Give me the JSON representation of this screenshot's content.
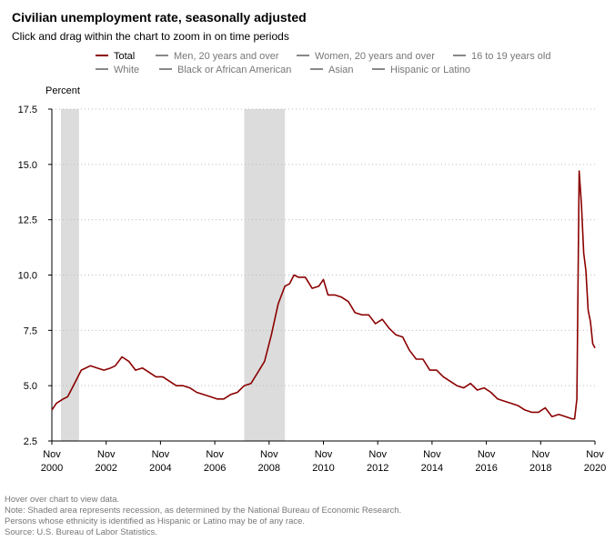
{
  "header": {
    "title": "Civilian unemployment rate, seasonally adjusted",
    "subtitle": "Click and drag within the chart to zoom in on time periods"
  },
  "legend": {
    "row1": [
      {
        "label": "Total",
        "active": true
      },
      {
        "label": "Men, 20 years and over",
        "active": false
      },
      {
        "label": "Women, 20 years and over",
        "active": false
      },
      {
        "label": "16 to 19 years old",
        "active": false
      }
    ],
    "row2": [
      {
        "label": "White",
        "active": false
      },
      {
        "label": "Black or African American",
        "active": false
      },
      {
        "label": "Asian",
        "active": false
      },
      {
        "label": "Hispanic or Latino",
        "active": false
      }
    ]
  },
  "notes": {
    "hover": "Hover over chart to view data.",
    "note": "Note: Shaded area represents recession, as determined by the National Bureau of Economic Research.",
    "ethnicity": "Persons whose ethnicity is identified as Hispanic or Latino may be of any race.",
    "source": "Source: U.S. Bureau of Labor Statistics."
  },
  "colors": {
    "series": "#8b0000",
    "recession": "#dcdcdc",
    "grid": "#bbbbbb",
    "axis": "#000000"
  },
  "chart_data": {
    "type": "line",
    "title": "Civilian unemployment rate, seasonally adjusted",
    "ylabel": "Percent",
    "xlabel": "",
    "ylim": [
      2.5,
      17.5
    ],
    "yticks": [
      "17.5",
      "15.0",
      "12.5",
      "10.0",
      "7.5",
      "5.0",
      "2.5"
    ],
    "xlim": [
      "2000-11",
      "2020-11"
    ],
    "xticks": [
      {
        "month": "Nov",
        "year": "2000"
      },
      {
        "month": "Nov",
        "year": "2002"
      },
      {
        "month": "Nov",
        "year": "2004"
      },
      {
        "month": "Nov",
        "year": "2006"
      },
      {
        "month": "Nov",
        "year": "2008"
      },
      {
        "month": "Nov",
        "year": "2010"
      },
      {
        "month": "Nov",
        "year": "2012"
      },
      {
        "month": "Nov",
        "year": "2014"
      },
      {
        "month": "Nov",
        "year": "2016"
      },
      {
        "month": "Nov",
        "year": "2018"
      },
      {
        "month": "Nov",
        "year": "2020"
      }
    ],
    "grid": true,
    "legend_position": "top",
    "recessions": [
      {
        "start": "2001-03",
        "end": "2001-11"
      },
      {
        "start": "2007-12",
        "end": "2009-06"
      }
    ],
    "series": [
      {
        "name": "Total",
        "points": [
          [
            "2000-11",
            3.9
          ],
          [
            "2001-01",
            4.2
          ],
          [
            "2001-04",
            4.4
          ],
          [
            "2001-06",
            4.5
          ],
          [
            "2001-08",
            4.9
          ],
          [
            "2001-10",
            5.3
          ],
          [
            "2001-12",
            5.7
          ],
          [
            "2002-04",
            5.9
          ],
          [
            "2002-07",
            5.8
          ],
          [
            "2002-10",
            5.7
          ],
          [
            "2003-01",
            5.8
          ],
          [
            "2003-03",
            5.9
          ],
          [
            "2003-06",
            6.3
          ],
          [
            "2003-09",
            6.1
          ],
          [
            "2003-12",
            5.7
          ],
          [
            "2004-03",
            5.8
          ],
          [
            "2004-06",
            5.6
          ],
          [
            "2004-09",
            5.4
          ],
          [
            "2004-12",
            5.4
          ],
          [
            "2005-03",
            5.2
          ],
          [
            "2005-06",
            5.0
          ],
          [
            "2005-09",
            5.0
          ],
          [
            "2005-12",
            4.9
          ],
          [
            "2006-03",
            4.7
          ],
          [
            "2006-06",
            4.6
          ],
          [
            "2006-09",
            4.5
          ],
          [
            "2006-12",
            4.4
          ],
          [
            "2007-03",
            4.4
          ],
          [
            "2007-06",
            4.6
          ],
          [
            "2007-09",
            4.7
          ],
          [
            "2007-12",
            5.0
          ],
          [
            "2008-03",
            5.1
          ],
          [
            "2008-06",
            5.6
          ],
          [
            "2008-09",
            6.1
          ],
          [
            "2008-12",
            7.3
          ],
          [
            "2009-03",
            8.7
          ],
          [
            "2009-06",
            9.5
          ],
          [
            "2009-08",
            9.6
          ],
          [
            "2009-10",
            10.0
          ],
          [
            "2009-12",
            9.9
          ],
          [
            "2010-03",
            9.9
          ],
          [
            "2010-06",
            9.4
          ],
          [
            "2010-09",
            9.5
          ],
          [
            "2010-11",
            9.8
          ],
          [
            "2011-01",
            9.1
          ],
          [
            "2011-04",
            9.1
          ],
          [
            "2011-07",
            9.0
          ],
          [
            "2011-10",
            8.8
          ],
          [
            "2012-01",
            8.3
          ],
          [
            "2012-04",
            8.2
          ],
          [
            "2012-07",
            8.2
          ],
          [
            "2012-10",
            7.8
          ],
          [
            "2013-01",
            8.0
          ],
          [
            "2013-04",
            7.6
          ],
          [
            "2013-07",
            7.3
          ],
          [
            "2013-10",
            7.2
          ],
          [
            "2014-01",
            6.6
          ],
          [
            "2014-04",
            6.2
          ],
          [
            "2014-07",
            6.2
          ],
          [
            "2014-10",
            5.7
          ],
          [
            "2015-01",
            5.7
          ],
          [
            "2015-04",
            5.4
          ],
          [
            "2015-07",
            5.2
          ],
          [
            "2015-10",
            5.0
          ],
          [
            "2016-01",
            4.9
          ],
          [
            "2016-04",
            5.1
          ],
          [
            "2016-07",
            4.8
          ],
          [
            "2016-10",
            4.9
          ],
          [
            "2017-01",
            4.7
          ],
          [
            "2017-04",
            4.4
          ],
          [
            "2017-07",
            4.3
          ],
          [
            "2017-10",
            4.2
          ],
          [
            "2018-01",
            4.1
          ],
          [
            "2018-04",
            3.9
          ],
          [
            "2018-07",
            3.8
          ],
          [
            "2018-10",
            3.8
          ],
          [
            "2019-01",
            4.0
          ],
          [
            "2019-04",
            3.6
          ],
          [
            "2019-07",
            3.7
          ],
          [
            "2019-10",
            3.6
          ],
          [
            "2020-01",
            3.5
          ],
          [
            "2020-02",
            3.5
          ],
          [
            "2020-03",
            4.4
          ],
          [
            "2020-04",
            14.7
          ],
          [
            "2020-05",
            13.2
          ],
          [
            "2020-06",
            11.0
          ],
          [
            "2020-07",
            10.2
          ],
          [
            "2020-08",
            8.4
          ],
          [
            "2020-09",
            7.9
          ],
          [
            "2020-10",
            6.9
          ],
          [
            "2020-11",
            6.7
          ]
        ]
      }
    ]
  }
}
